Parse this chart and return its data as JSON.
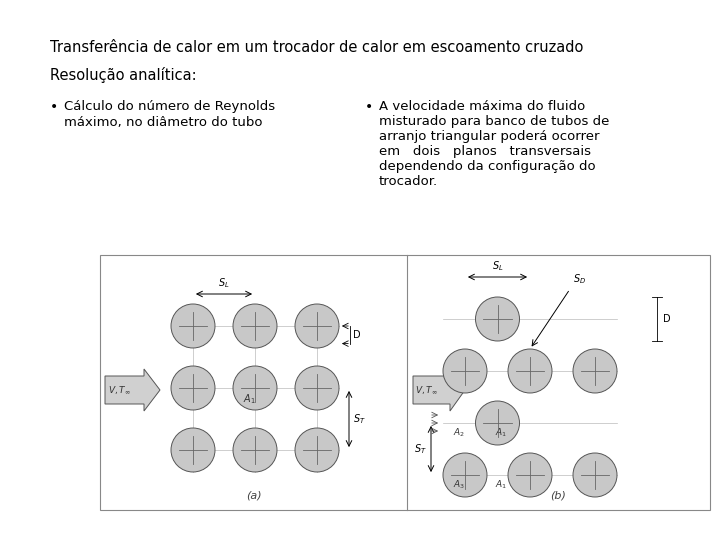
{
  "title": "Transferência de calor em um trocador de calor em escoamento cruzado",
  "subtitle": "Resolução analítica:",
  "bullet1_line1": "Cálculo do número de Reynolds",
  "bullet1_line2": "máximo, no diâmetro do tubo",
  "bullet2_line1": "A velocidade máxima do fluido",
  "bullet2_line2": "misturado para banco de tubos de",
  "bullet2_line3": "arranjo triangular poderá ocorrer",
  "bullet2_line4": "em   dois   planos   transversais",
  "bullet2_line5": "dependendo da configuração do",
  "bullet2_line6": "trocador.",
  "bg_color": "#ffffff",
  "text_color": "#000000",
  "title_fontsize": 10.5,
  "subtitle_fontsize": 10.5,
  "bullet_fontsize": 9.5,
  "fig_width": 7.2,
  "fig_height": 5.4
}
